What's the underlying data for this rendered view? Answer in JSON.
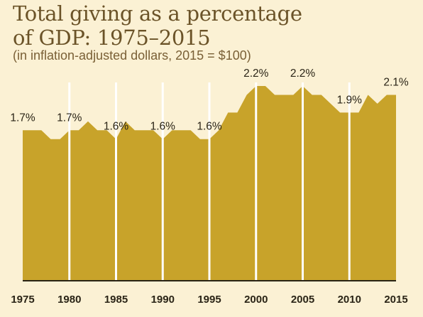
{
  "title_line1": "Total giving as a percentage",
  "title_line2": "of GDP: 1975–2015",
  "subtitle": "(in inflation-adjusted dollars, 2015 = $100)",
  "colors": {
    "fill": "#c8a32a",
    "background": "#fbf1d4",
    "separator": "#ffffff"
  },
  "chart_data": {
    "type": "area",
    "title": "Total giving as a percentage of GDP: 1975–2015",
    "subtitle": "(in inflation-adjusted dollars, 2015 = $100)",
    "xlabel": "",
    "ylabel": "",
    "x": [
      1975,
      1976,
      1977,
      1978,
      1979,
      1980,
      1981,
      1982,
      1983,
      1984,
      1985,
      1986,
      1987,
      1988,
      1989,
      1990,
      1991,
      1992,
      1993,
      1994,
      1995,
      1996,
      1997,
      1998,
      1999,
      2000,
      2001,
      2002,
      2003,
      2004,
      2005,
      2006,
      2007,
      2008,
      2009,
      2010,
      2011,
      2012,
      2013,
      2014,
      2015
    ],
    "values": [
      1.7,
      1.7,
      1.7,
      1.6,
      1.6,
      1.7,
      1.7,
      1.8,
      1.7,
      1.7,
      1.6,
      1.8,
      1.7,
      1.7,
      1.7,
      1.6,
      1.7,
      1.7,
      1.7,
      1.6,
      1.6,
      1.7,
      1.9,
      1.9,
      2.1,
      2.2,
      2.2,
      2.1,
      2.1,
      2.1,
      2.2,
      2.1,
      2.1,
      2.0,
      1.9,
      1.9,
      1.9,
      2.1,
      2.0,
      2.1,
      2.1
    ],
    "xticks": [
      "1975",
      "1980",
      "1985",
      "1990",
      "1995",
      "2000",
      "2005",
      "2010",
      "2015"
    ],
    "annotations": [
      {
        "year": 1975,
        "text": "1.7%"
      },
      {
        "year": 1980,
        "text": "1.7%"
      },
      {
        "year": 1985,
        "text": "1.6%"
      },
      {
        "year": 1990,
        "text": "1.6%"
      },
      {
        "year": 1995,
        "text": "1.6%"
      },
      {
        "year": 2000,
        "text": "2.2%"
      },
      {
        "year": 2005,
        "text": "2.2%"
      },
      {
        "year": 2010,
        "text": "1.9%"
      },
      {
        "year": 2015,
        "text": "2.1%"
      }
    ],
    "grid": false,
    "legend": "none"
  }
}
